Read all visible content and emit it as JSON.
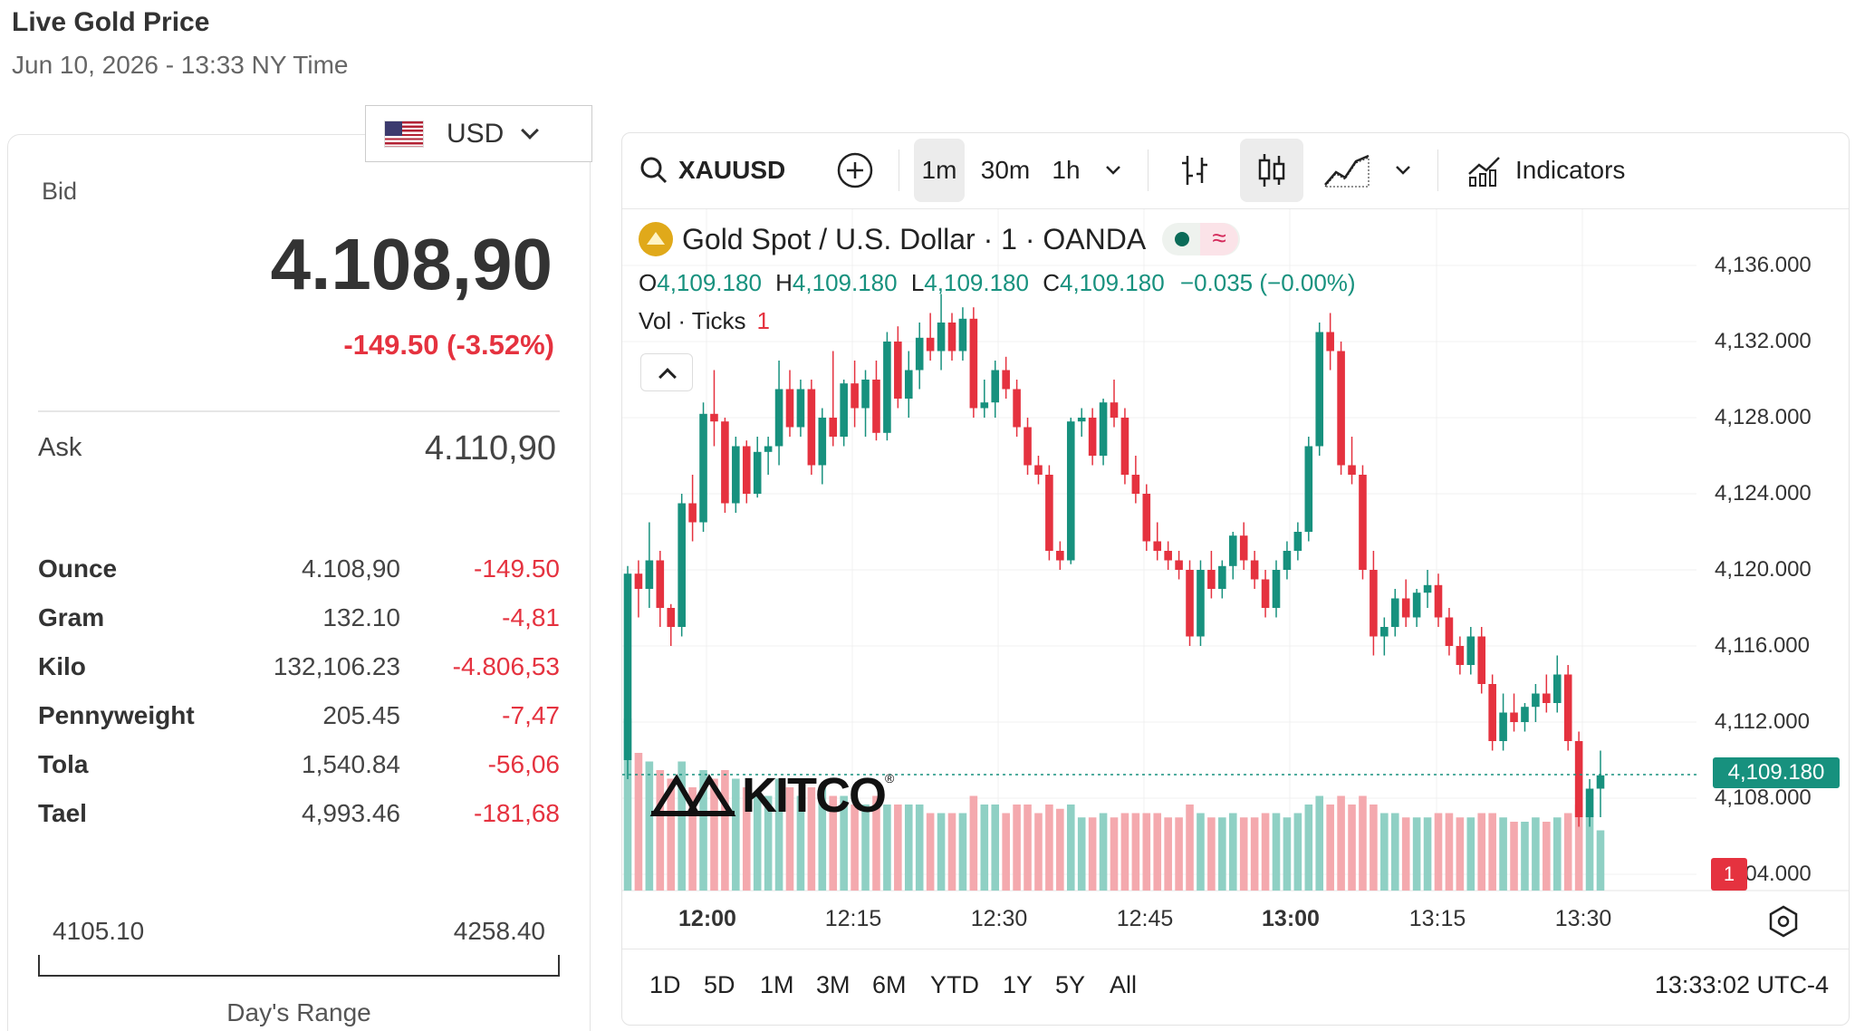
{
  "page": {
    "title": "Live Gold Price",
    "date": "Jun 10, 2026 - 13:33 NY Time"
  },
  "currency": {
    "selected": "USD",
    "flag_icon": "us-flag-icon"
  },
  "quote": {
    "bid_label": "Bid",
    "bid": "4.108,90",
    "change": "-149.50 (-3.52%)",
    "ask_label": "Ask",
    "ask": "4.110,90"
  },
  "units": [
    {
      "name": "Ounce",
      "price": "4.108,90",
      "change": "-149.50"
    },
    {
      "name": "Gram",
      "price": "132.10",
      "change": "-4,81"
    },
    {
      "name": "Kilo",
      "price": "132,106.23",
      "change": "-4.806,53"
    },
    {
      "name": "Pennyweight",
      "price": "205.45",
      "change": "-7,47"
    },
    {
      "name": "Tola",
      "price": "1,540.84",
      "change": "-56,06"
    },
    {
      "name": "Tael",
      "price": "4,993.46",
      "change": "-181,68"
    }
  ],
  "day_range": {
    "low": "4105.10",
    "high": "4258.40",
    "label": "Day's Range"
  },
  "toolbar": {
    "symbol": "XAUUSD",
    "intervals": [
      "1m",
      "30m",
      "1h"
    ],
    "active_interval": "1m",
    "indicators_label": "Indicators"
  },
  "legend": {
    "title": "Gold Spot / U.S. Dollar · 1 · OANDA",
    "o_label": "O",
    "o": "4,109.180",
    "h_label": "H",
    "h": "4,109.180",
    "l_label": "L",
    "l": "4,109.180",
    "c_label": "C",
    "c": "4,109.180",
    "change": "−0.035 (−0.00%)",
    "vol_label": "Vol · Ticks",
    "vol_value": "1",
    "wave_symbol": "≈"
  },
  "price_axis": [
    "4,136.000",
    "4,132.000",
    "4,128.000",
    "4,124.000",
    "4,120.000",
    "4,116.000",
    "4,112.000",
    "4,108.000",
    "4,104.000"
  ],
  "current_price_tag": "4,109.180",
  "red_badge": "1",
  "time_axis": [
    {
      "label": "12:00",
      "bold": true
    },
    {
      "label": "12:15",
      "bold": false
    },
    {
      "label": "12:30",
      "bold": false
    },
    {
      "label": "12:45",
      "bold": false
    },
    {
      "label": "13:00",
      "bold": true
    },
    {
      "label": "13:15",
      "bold": false
    },
    {
      "label": "13:30",
      "bold": false
    }
  ],
  "range_buttons": [
    "1D",
    "5D",
    "1M",
    "3M",
    "6M",
    "YTD",
    "1Y",
    "5Y",
    "All"
  ],
  "clock": "13:33:02 UTC-4",
  "watermark": "KITCO",
  "colors": {
    "up": "#17917e",
    "down": "#e5323f",
    "up_vol": "#8fd0c4",
    "down_vol": "#f4a9ae"
  },
  "chart_data": {
    "type": "candlestick",
    "title": "Gold Spot / U.S. Dollar · 1 · OANDA",
    "ylim": [
      4102.5,
      4137.5
    ],
    "y_ticks": [
      4104,
      4108,
      4112,
      4116,
      4120,
      4124,
      4128,
      4132,
      4136
    ],
    "x_ticks": [
      "12:00",
      "12:15",
      "12:30",
      "12:45",
      "13:00",
      "13:15",
      "13:30"
    ],
    "candles": [
      [
        4110.0,
        4120.2,
        4109.0,
        4119.8,
        2000
      ],
      [
        4119.8,
        4120.5,
        4117.5,
        4119.0,
        1600
      ],
      [
        4119.0,
        4122.5,
        4118.0,
        4120.5,
        1500
      ],
      [
        4120.5,
        4121.0,
        4117.0,
        4118.0,
        1400
      ],
      [
        4118.0,
        4118.2,
        4116.0,
        4117.0,
        1300
      ],
      [
        4117.0,
        4124.0,
        4116.5,
        4123.5,
        1500
      ],
      [
        4123.5,
        4125.0,
        4121.5,
        4122.5,
        1200
      ],
      [
        4122.5,
        4128.8,
        4122.0,
        4128.2,
        1400
      ],
      [
        4128.2,
        4130.5,
        4126.5,
        4127.8,
        1300
      ],
      [
        4127.8,
        4128.0,
        4123.0,
        4123.5,
        1400
      ],
      [
        4123.5,
        4127.0,
        4123.0,
        4126.5,
        1300
      ],
      [
        4126.5,
        4126.8,
        4123.5,
        4124.0,
        1200
      ],
      [
        4124.0,
        4127.0,
        4123.8,
        4126.2,
        1100
      ],
      [
        4126.2,
        4127.0,
        4125.0,
        4126.5,
        1100
      ],
      [
        4126.5,
        4131.0,
        4125.5,
        4129.5,
        1300
      ],
      [
        4129.5,
        4130.5,
        4127.0,
        4127.5,
        1200
      ],
      [
        4127.5,
        4130.0,
        4127.0,
        4129.5,
        1100
      ],
      [
        4129.5,
        4130.0,
        4125.0,
        4125.5,
        1200
      ],
      [
        4125.5,
        4128.5,
        4124.5,
        4128.0,
        1200
      ],
      [
        4128.0,
        4131.5,
        4126.5,
        4127.0,
        1100
      ],
      [
        4127.0,
        4130.0,
        4126.5,
        4129.8,
        1100
      ],
      [
        4129.8,
        4131.0,
        4127.5,
        4128.5,
        1000
      ],
      [
        4128.5,
        4130.5,
        4127.0,
        4130.0,
        1000
      ],
      [
        4130.0,
        4131.0,
        4126.8,
        4127.2,
        1100
      ],
      [
        4127.2,
        4132.5,
        4126.8,
        4132.0,
        1000
      ],
      [
        4132.0,
        4132.8,
        4128.5,
        4129.0,
        1000
      ],
      [
        4129.0,
        4131.5,
        4128.0,
        4130.5,
        1000
      ],
      [
        4130.5,
        4133.0,
        4129.5,
        4132.2,
        1000
      ],
      [
        4132.2,
        4133.5,
        4131.0,
        4131.5,
        900
      ],
      [
        4131.5,
        4134.5,
        4130.5,
        4133.0,
        900
      ],
      [
        4133.0,
        4133.5,
        4131.0,
        4131.5,
        900
      ],
      [
        4131.5,
        4133.8,
        4131.0,
        4133.2,
        900
      ],
      [
        4133.2,
        4133.8,
        4128.0,
        4128.5,
        1100
      ],
      [
        4128.5,
        4130.0,
        4128.0,
        4128.8,
        1000
      ],
      [
        4128.8,
        4131.0,
        4128.0,
        4130.5,
        1000
      ],
      [
        4130.5,
        4131.2,
        4129.0,
        4129.5,
        900
      ],
      [
        4129.5,
        4130.0,
        4127.0,
        4127.5,
        1000
      ],
      [
        4127.5,
        4128.0,
        4125.0,
        4125.5,
        1000
      ],
      [
        4125.5,
        4126.0,
        4124.5,
        4125.0,
        900
      ],
      [
        4125.0,
        4125.5,
        4120.5,
        4121.0,
        1000
      ],
      [
        4121.0,
        4121.5,
        4120.0,
        4120.5,
        950
      ],
      [
        4120.5,
        4128.0,
        4120.3,
        4127.8,
        1000
      ],
      [
        4127.8,
        4128.5,
        4127.0,
        4128.0,
        850
      ],
      [
        4128.0,
        4128.5,
        4125.5,
        4126.0,
        850
      ],
      [
        4126.0,
        4129.0,
        4125.5,
        4128.8,
        900
      ],
      [
        4128.8,
        4130.0,
        4127.5,
        4128.0,
        850
      ],
      [
        4128.0,
        4128.5,
        4124.5,
        4125.0,
        900
      ],
      [
        4125.0,
        4126.0,
        4123.5,
        4124.0,
        900
      ],
      [
        4124.0,
        4124.5,
        4121.0,
        4121.5,
        900
      ],
      [
        4121.5,
        4122.5,
        4120.5,
        4121.0,
        900
      ],
      [
        4121.0,
        4121.5,
        4120.0,
        4120.5,
        850
      ],
      [
        4120.5,
        4121.0,
        4119.5,
        4120.0,
        850
      ],
      [
        4120.0,
        4120.5,
        4116.0,
        4116.5,
        1000
      ],
      [
        4116.5,
        4120.5,
        4116.0,
        4120.0,
        900
      ],
      [
        4120.0,
        4121.0,
        4118.5,
        4119.0,
        850
      ],
      [
        4119.0,
        4120.5,
        4118.5,
        4120.2,
        850
      ],
      [
        4120.2,
        4122.0,
        4119.5,
        4121.8,
        900
      ],
      [
        4121.8,
        4122.5,
        4120.0,
        4120.5,
        850
      ],
      [
        4120.5,
        4121.0,
        4119.0,
        4119.5,
        850
      ],
      [
        4119.5,
        4120.0,
        4117.5,
        4118.0,
        900
      ],
      [
        4118.0,
        4120.5,
        4117.5,
        4120.0,
        900
      ],
      [
        4120.0,
        4121.5,
        4119.5,
        4121.0,
        850
      ],
      [
        4121.0,
        4122.5,
        4120.5,
        4122.0,
        900
      ],
      [
        4122.0,
        4127.0,
        4121.5,
        4126.5,
        1000
      ],
      [
        4126.5,
        4133.0,
        4126.0,
        4132.5,
        1100
      ],
      [
        4132.5,
        4133.5,
        4130.5,
        4131.5,
        1000
      ],
      [
        4131.5,
        4132.0,
        4125.0,
        4125.5,
        1100
      ],
      [
        4125.5,
        4127.0,
        4124.5,
        4125.0,
        1000
      ],
      [
        4125.0,
        4125.5,
        4119.5,
        4120.0,
        1100
      ],
      [
        4120.0,
        4121.0,
        4115.5,
        4116.5,
        1000
      ],
      [
        4116.5,
        4117.5,
        4115.5,
        4117.0,
        900
      ],
      [
        4117.0,
        4119.0,
        4116.5,
        4118.5,
        900
      ],
      [
        4118.5,
        4119.5,
        4117.0,
        4117.5,
        850
      ],
      [
        4117.5,
        4119.0,
        4117.0,
        4118.8,
        850
      ],
      [
        4118.8,
        4120.0,
        4118.0,
        4119.2,
        850
      ],
      [
        4119.2,
        4119.8,
        4117.0,
        4117.5,
        900
      ],
      [
        4117.5,
        4118.0,
        4115.5,
        4116.0,
        900
      ],
      [
        4116.0,
        4116.5,
        4114.5,
        4115.0,
        850
      ],
      [
        4115.0,
        4117.0,
        4114.5,
        4116.5,
        850
      ],
      [
        4116.5,
        4117.0,
        4113.5,
        4114.0,
        900
      ],
      [
        4114.0,
        4114.5,
        4110.5,
        4111.0,
        900
      ],
      [
        4111.0,
        4113.5,
        4110.5,
        4112.5,
        850
      ],
      [
        4112.5,
        4113.5,
        4111.5,
        4112.0,
        800
      ],
      [
        4112.0,
        4113.0,
        4111.5,
        4112.8,
        800
      ],
      [
        4112.8,
        4114.0,
        4112.0,
        4113.5,
        850
      ],
      [
        4113.5,
        4114.5,
        4112.5,
        4113.0,
        800
      ],
      [
        4113.0,
        4115.5,
        4112.5,
        4114.5,
        850
      ],
      [
        4114.5,
        4115.0,
        4110.5,
        4111.0,
        900
      ],
      [
        4111.0,
        4111.5,
        4106.5,
        4107.0,
        1000
      ],
      [
        4107.0,
        4109.0,
        4106.5,
        4108.5,
        900
      ],
      [
        4108.5,
        4110.5,
        4107.0,
        4109.2,
        700
      ]
    ]
  }
}
